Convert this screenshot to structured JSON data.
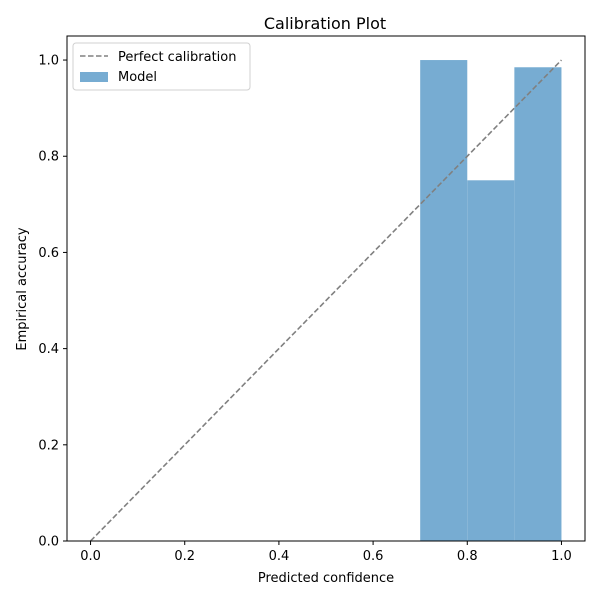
{
  "chart_data": {
    "type": "bar",
    "title": "Calibration Plot",
    "xlabel": "Predicted confidence",
    "ylabel": "Empirical accuracy",
    "xlim": [
      -0.05,
      1.05
    ],
    "ylim": [
      0.0,
      1.05
    ],
    "xticks": [
      "0.0",
      "0.2",
      "0.4",
      "0.6",
      "0.8",
      "1.0"
    ],
    "yticks": [
      "0.0",
      "0.2",
      "0.4",
      "0.6",
      "0.8",
      "1.0"
    ],
    "grid": false,
    "legend_position": "upper-left",
    "legend": [
      "Perfect calibration",
      "Model"
    ],
    "series": [
      {
        "name": "Perfect calibration",
        "type": "line",
        "style": "dashed",
        "color": "#808080",
        "x": [
          0.0,
          1.0
        ],
        "y": [
          0.0,
          1.0
        ]
      },
      {
        "name": "Model",
        "type": "bar",
        "color": "#77acd2",
        "bin_width": 0.1,
        "bins": [
          {
            "left": 0.7,
            "value": 1.0
          },
          {
            "left": 0.8,
            "value": 0.75
          },
          {
            "left": 0.9,
            "value": 0.985
          }
        ]
      }
    ]
  }
}
